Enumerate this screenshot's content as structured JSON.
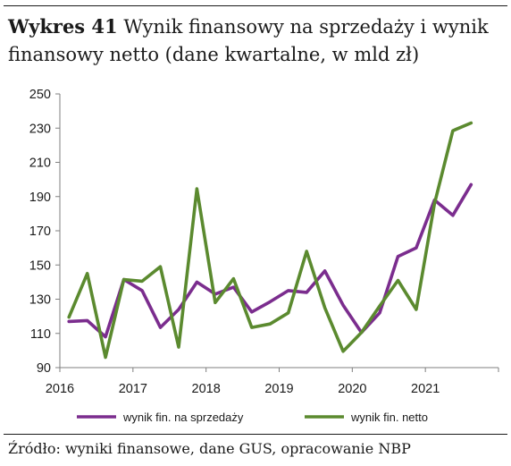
{
  "title": {
    "bold": "Wykres 41",
    "rest": "Wynik finansowy na sprzedaży i wynik finansowy netto (dane kwartalne, w mld zł)"
  },
  "source": "Źródło: wyniki finansowe, dane GUS, opracowanie NBP",
  "chart_data": {
    "type": "line",
    "title": "Wynik finansowy na sprzedaży i wynik finansowy netto (dane kwartalne, w mld zł)",
    "xlabel": "",
    "ylabel": "",
    "ylim": [
      90,
      250
    ],
    "yticks": [
      90,
      110,
      130,
      150,
      170,
      190,
      210,
      230,
      250
    ],
    "xlim": [
      2016,
      2022
    ],
    "xticks": [
      "2016",
      "2017",
      "2018",
      "2019",
      "2020",
      "2021"
    ],
    "x": [
      "2016Q1",
      "2016Q2",
      "2016Q3",
      "2016Q4",
      "2017Q1",
      "2017Q2",
      "2017Q3",
      "2017Q4",
      "2018Q1",
      "2018Q2",
      "2018Q3",
      "2018Q4",
      "2019Q1",
      "2019Q2",
      "2019Q3",
      "2019Q4",
      "2020Q1",
      "2020Q2",
      "2020Q3",
      "2020Q4",
      "2021Q1",
      "2021Q2",
      "2021Q3"
    ],
    "grid": false,
    "legend": "bottom",
    "series": [
      {
        "name": "wynik fin. na sprzedaży",
        "color": "#7b2d8e",
        "values": [
          117,
          117.5,
          108,
          141.5,
          135,
          113.5,
          124,
          140,
          133,
          137,
          122.5,
          128.5,
          135,
          134,
          146.5,
          126.5,
          110.5,
          122,
          155,
          160,
          188,
          179,
          197
        ]
      },
      {
        "name": "wynik fin. netto",
        "color": "#5b8a2f",
        "values": [
          119.5,
          145,
          96,
          141.5,
          140.5,
          149,
          102,
          194.5,
          128,
          142,
          113.5,
          115.5,
          122,
          158,
          125,
          99.5,
          110.5,
          126,
          141,
          124,
          186,
          228.5,
          233
        ]
      }
    ]
  }
}
